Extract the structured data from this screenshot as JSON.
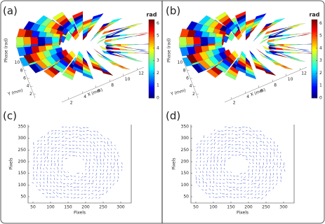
{
  "chart_data": [
    {
      "type": "surface",
      "label": "(a)",
      "zlabel": "Phase (rad)",
      "ylabel": "Y (mm)",
      "xlabel": "X (mm)",
      "ylim": [
        1,
        11
      ],
      "yticks": [
        2,
        4,
        6,
        8,
        10
      ],
      "xlim": [
        1,
        13
      ],
      "xticks": [
        2,
        4,
        6,
        8,
        10,
        12
      ],
      "colorbar": {
        "label": "rad",
        "lim": [
          0,
          6.3
        ],
        "ticks": [
          0,
          1,
          2,
          3,
          4,
          5,
          6
        ]
      }
    },
    {
      "type": "surface",
      "label": "(b)",
      "zlabel": "Phase (rad)",
      "ylabel": "Y (mm)",
      "xlabel": "X (mm)",
      "ylim": [
        1,
        11
      ],
      "yticks": [
        2,
        4,
        6,
        8,
        10
      ],
      "xlim": [
        1,
        13
      ],
      "xticks": [
        2,
        4,
        6,
        8,
        10,
        12
      ],
      "colorbar": {
        "label": "rad",
        "lim": [
          0,
          6.3
        ],
        "ticks": [
          0,
          1,
          2,
          3,
          4,
          5,
          6
        ]
      }
    },
    {
      "type": "quiver",
      "label": "(c)",
      "xlabel": "Pixels",
      "ylabel": "Pixels",
      "color": "#3a4fd0",
      "xlim": [
        36,
        330
      ],
      "xticks": [
        50,
        100,
        150,
        200,
        250,
        300
      ],
      "ylim": [
        23,
        359
      ],
      "yticks": [
        50,
        100,
        150,
        200,
        250,
        300,
        350
      ]
    },
    {
      "type": "quiver",
      "label": "(d)",
      "xlabel": "Pixels",
      "ylabel": "Pixels",
      "color": "#3a4fd0",
      "xlim": [
        36,
        330
      ],
      "xticks": [
        50,
        100,
        150,
        200,
        250,
        300
      ],
      "ylim": [
        23,
        359
      ],
      "yticks": [
        50,
        100,
        150,
        200,
        250,
        300,
        350
      ]
    }
  ]
}
